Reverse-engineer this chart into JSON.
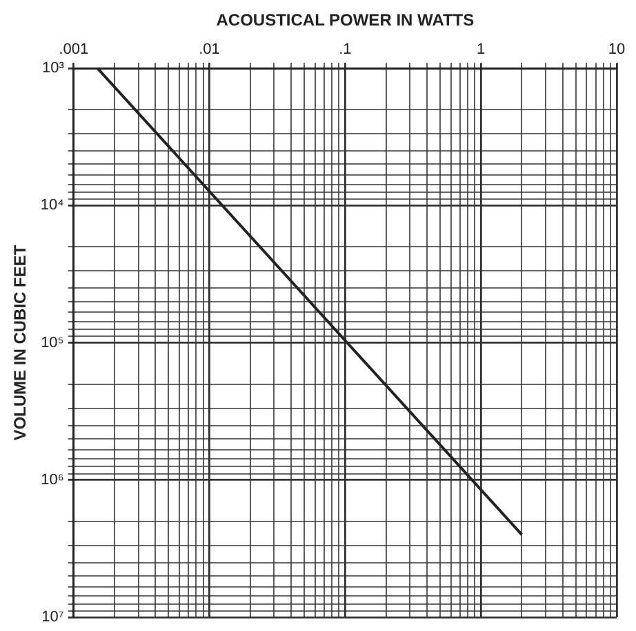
{
  "chart_data": {
    "type": "line",
    "xlabel": "ACOUSTICAL POWER IN WATTS",
    "ylabel": "VOLUME IN CUBIC FEET",
    "log": "xy",
    "grid": true,
    "legend": false,
    "marker": "none",
    "line_style": "solid",
    "x": [
      0.0015,
      2
    ],
    "series": [
      {
        "color": "#222222",
        "values": [
          1000,
          2500000
        ]
      }
    ],
    "xlim": [
      0.001,
      10
    ],
    "xticks": [
      {
        "value": 0.001,
        "label": ".001"
      },
      {
        "value": 0.002,
        "label": null
      },
      {
        "value": 0.003,
        "label": null
      },
      {
        "value": 0.004,
        "label": null
      },
      {
        "value": 0.005,
        "label": null
      },
      {
        "value": 0.006,
        "label": null
      },
      {
        "value": 0.007,
        "label": null
      },
      {
        "value": 0.008,
        "label": null
      },
      {
        "value": 0.009,
        "label": null
      },
      {
        "value": 0.01,
        "label": ".01"
      },
      {
        "value": 0.02,
        "label": null
      },
      {
        "value": 0.03,
        "label": null
      },
      {
        "value": 0.04,
        "label": null
      },
      {
        "value": 0.05,
        "label": null
      },
      {
        "value": 0.06,
        "label": null
      },
      {
        "value": 0.07,
        "label": null
      },
      {
        "value": 0.08,
        "label": null
      },
      {
        "value": 0.09,
        "label": null
      },
      {
        "value": 0.1,
        "label": ".1"
      },
      {
        "value": 0.2,
        "label": null
      },
      {
        "value": 0.3,
        "label": null
      },
      {
        "value": 0.4,
        "label": null
      },
      {
        "value": 0.5,
        "label": null
      },
      {
        "value": 0.6,
        "label": null
      },
      {
        "value": 0.7,
        "label": null
      },
      {
        "value": 0.8,
        "label": null
      },
      {
        "value": 0.9,
        "label": null
      },
      {
        "value": 1,
        "label": "1"
      },
      {
        "value": 2,
        "label": null
      },
      {
        "value": 3,
        "label": null
      },
      {
        "value": 4,
        "label": null
      },
      {
        "value": 5,
        "label": null
      },
      {
        "value": 6,
        "label": null
      },
      {
        "value": 7,
        "label": null
      },
      {
        "value": 8,
        "label": null
      },
      {
        "value": 9,
        "label": null
      },
      {
        "value": 10,
        "label": "10"
      }
    ],
    "ylim": [
      10000000,
      1000
    ],
    "yticks": [
      {
        "value": 1000,
        "label": "10³"
      },
      {
        "value": 2000,
        "label": null
      },
      {
        "value": 3000,
        "label": null
      },
      {
        "value": 4000,
        "label": null
      },
      {
        "value": 5000,
        "label": null
      },
      {
        "value": 6000,
        "label": null
      },
      {
        "value": 7000,
        "label": null
      },
      {
        "value": 8000,
        "label": null
      },
      {
        "value": 9000,
        "label": null
      },
      {
        "value": 10000,
        "label": "10⁴"
      },
      {
        "value": 20000,
        "label": null
      },
      {
        "value": 30000,
        "label": null
      },
      {
        "value": 40000,
        "label": null
      },
      {
        "value": 50000,
        "label": null
      },
      {
        "value": 60000,
        "label": null
      },
      {
        "value": 70000,
        "label": null
      },
      {
        "value": 80000,
        "label": null
      },
      {
        "value": 90000,
        "label": null
      },
      {
        "value": 100000,
        "label": "10⁵"
      },
      {
        "value": 200000,
        "label": null
      },
      {
        "value": 300000,
        "label": null
      },
      {
        "value": 400000,
        "label": null
      },
      {
        "value": 500000,
        "label": null
      },
      {
        "value": 600000,
        "label": null
      },
      {
        "value": 700000,
        "label": null
      },
      {
        "value": 800000,
        "label": null
      },
      {
        "value": 900000,
        "label": null
      },
      {
        "value": 1000000,
        "label": "10⁶"
      },
      {
        "value": 2000000,
        "label": null
      },
      {
        "value": 3000000,
        "label": null
      },
      {
        "value": 4000000,
        "label": null
      },
      {
        "value": 5000000,
        "label": null
      },
      {
        "value": 6000000,
        "label": null
      },
      {
        "value": 7000000,
        "label": null
      },
      {
        "value": 8000000,
        "label": null
      },
      {
        "value": 9000000,
        "label": null
      },
      {
        "value": 10000000,
        "label": "10⁷"
      }
    ]
  }
}
